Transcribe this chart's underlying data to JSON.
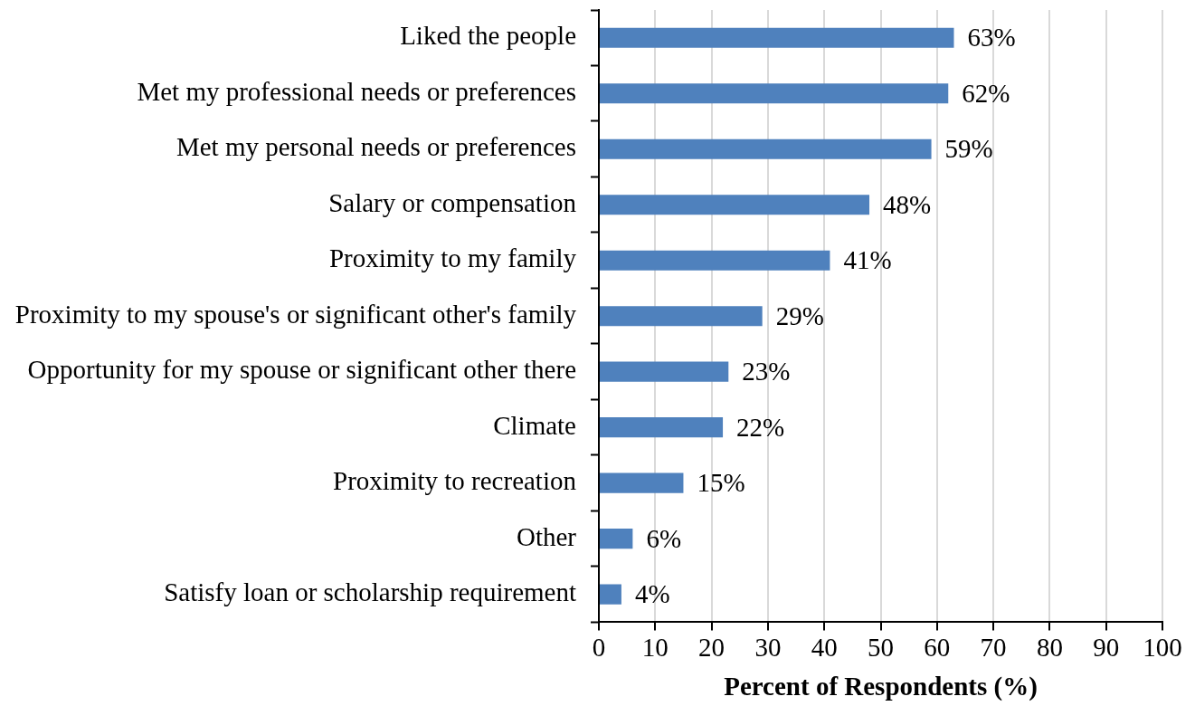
{
  "chart_data": {
    "type": "bar",
    "orientation": "horizontal",
    "categories": [
      "Liked the people",
      "Met my professional needs or preferences",
      "Met my personal needs or preferences",
      "Salary or compensation",
      "Proximity to my family",
      "Proximity to my spouse's or significant other's family",
      "Opportunity for my spouse or significant other there",
      "Climate",
      "Proximity to recreation",
      "Other",
      "Satisfy loan or scholarship requirement"
    ],
    "values": [
      63,
      62,
      59,
      48,
      41,
      29,
      23,
      22,
      15,
      6,
      4
    ],
    "value_labels": [
      "63%",
      "62%",
      "59%",
      "48%",
      "41%",
      "29%",
      "23%",
      "22%",
      "15%",
      "6%",
      "4%"
    ],
    "color": "#4f81bd",
    "xlabel": "Percent of Respondents (%)",
    "xlim": [
      0,
      100
    ],
    "xticks": [
      0,
      10,
      20,
      30,
      40,
      50,
      60,
      70,
      80,
      90,
      100
    ],
    "grid": "x"
  }
}
